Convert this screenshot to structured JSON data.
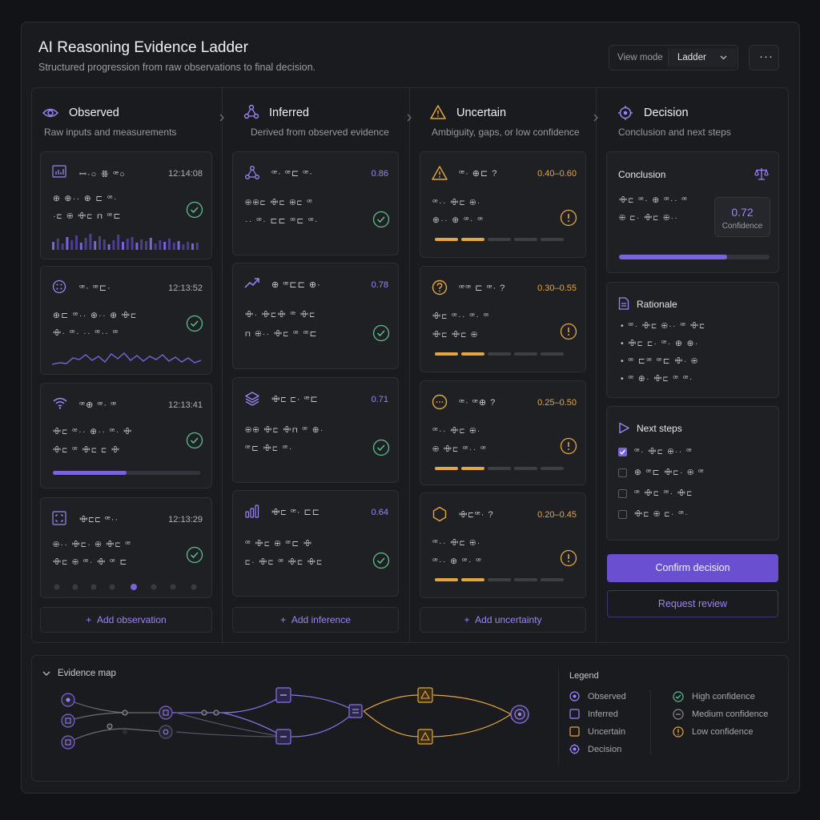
{
  "header": {
    "title": "AI Reasoning Evidence Ladder",
    "subtitle": "Structured progression from raw observations to final decision.",
    "view_label": "View mode",
    "view_value": "Ladder",
    "more": "···"
  },
  "columns": [
    {
      "title": "Observed",
      "subtitle": "Raw inputs and measurements",
      "add": "Add observation"
    },
    {
      "title": "Inferred",
      "subtitle": "Derived from observed evidence",
      "add": "Add inference"
    },
    {
      "title": "Uncertain",
      "subtitle": "Ambiguity, gaps, or low confidence",
      "add": "Add uncertainty"
    },
    {
      "title": "Decision",
      "subtitle": "Conclusion and next steps"
    }
  ],
  "observed": [
    {
      "title": "ꟷ·○ ꗥ ꟹ○",
      "time": "12:14:08",
      "lines": [
        "⊕ ⊕·· ⊕ ⊏ ꟹ·",
        "·⊏ ⊕ ꗳ⊏ ⊓ ꟹ⊏"
      ]
    },
    {
      "title": "ꟹ· ꟹ⊏·",
      "time": "12:13:52",
      "lines": [
        "⊕⊏ ꟹ·· ⊕·· ⊕ ꗳ⊏",
        "ꗳ· ꟹ· ·· ꟹ·· ꟹ"
      ]
    },
    {
      "title": "ꟹ⊕ ꟹ· ꟹ",
      "time": "12:13:41",
      "lines": [
        "ꗳ⊏ ꟹ·· ⊕·· ꟹ· ꗳ",
        "ꗳ⊏ ꟹ ꗳ⊏ ⊏ ꗳ"
      ]
    },
    {
      "title": "ꗳ⊏⊏ ꟹ··",
      "time": "12:13:29",
      "lines": [
        "⊕·· ꗳ⊏· ⊕ ꗳ⊏ ꟹ",
        "ꗳ⊏ ⊕ ꟹ· ꗳ ꟹ ⊏"
      ]
    }
  ],
  "inferred": [
    {
      "title": "ꟹ· ꟹ⊏ ꟹ·",
      "score": "0.86",
      "lines": [
        "⊕⊕⊏ ꗳ⊏ ⊕⊏ ꟹ",
        "·· ꟹ· ⊏⊏ ꟹ⊏ ꟹ·"
      ]
    },
    {
      "title": "⊕ ꟹ⊏⊏ ⊕·",
      "score": "0.78",
      "lines": [
        "ꗳ· ꗳ⊏ꗳ ꟹ ꗳ⊏",
        "⊓ ⊕·· ꗳ⊏ ꟹ ꟹ⊏"
      ]
    },
    {
      "title": "ꗳ⊏ ⊏· ꟹ⊏",
      "score": "0.71",
      "lines": [
        "⊕⊕ ꗳ⊏ ꗳ⊓ ꟹ ⊕·",
        "ꟹ⊏ ꗳ⊏ ꟹ·"
      ]
    },
    {
      "title": "ꗳ⊏ ꟹ· ⊏⊏",
      "score": "0.64",
      "lines": [
        "ꟹ ꗳ⊏ ⊕ ꟹ⊏ ꗳ",
        "⊏· ꗳ⊏ ꟹ ꗳ⊏ ꗳ⊏"
      ]
    }
  ],
  "uncertain": [
    {
      "title": "ꟹ· ⊕⊏ ?",
      "range": "0.40–0.60",
      "lines": [
        "ꟹ·· ꗳ⊏ ⊕·",
        "⊕·· ⊕ ꟹ· ꟹ"
      ]
    },
    {
      "title": "ꟹꟹ ⊏ ꟹ· ?",
      "range": "0.30–0.55",
      "lines": [
        "ꗳ⊏ ꟹ·· ꟹ· ꟹ",
        "ꗳ⊏ ꗳ⊏ ⊕"
      ]
    },
    {
      "title": "ꟹ· ꟹ⊕ ?",
      "range": "0.25–0.50",
      "lines": [
        "ꟹ·· ꗳ⊏ ⊕·",
        "⊕ ꗳ⊏ ꟹ·· ꟹ"
      ]
    },
    {
      "title": "ꗳ⊏ꟹ· ?",
      "range": "0.20–0.45",
      "lines": [
        "ꟹ·· ꗳ⊏ ⊕·",
        "ꟹ·· ⊕ ꟹ· ꟹ"
      ]
    }
  ],
  "decision": {
    "conclusion_title": "Conclusion",
    "conclusion_lines": [
      "ꗳ⊏ ꟹ· ⊕ ꟹ·· ꟹ",
      "⊕ ⊏· ꗳ⊏ ⊕··"
    ],
    "confidence_value": "0.72",
    "confidence_label": "Confidence",
    "confidence_fraction": 0.72,
    "rationale_title": "Rationale",
    "rationale_items": [
      "ꟹ· ꗳ⊏ ⊕·· ꟹ ꗳ⊏",
      "ꗳ⊏ ⊏· ꟹ· ⊕ ⊕·",
      "ꟹ ⊏ꟹ ꟹ⊏ ꗳ· ⊕",
      "ꟹ ⊕· ꗳ⊏ ꟹ ꟹ·"
    ],
    "next_title": "Next steps",
    "next_items": [
      {
        "text": "ꟹ· ꗳ⊏ ⊕·· ꟹ",
        "checked": true
      },
      {
        "text": "⊕ ꟹ⊏ ꗳ⊏· ⊕ ꟹ",
        "checked": false
      },
      {
        "text": "ꟹ ꗳ⊏ ꟹ· ꗳ⊏",
        "checked": false
      },
      {
        "text": "ꗳ⊏ ⊕ ⊏· ꟹ·",
        "checked": false
      }
    ],
    "confirm": "Confirm decision",
    "review": "Request review"
  },
  "observed_progress": 0.5,
  "uncertain_level": 2,
  "map": {
    "title": "Evidence map",
    "legend_title": "Legend",
    "legend": [
      "Observed",
      "Inferred",
      "Uncertain",
      "Decision"
    ],
    "confidence": [
      "High confidence",
      "Medium confidence",
      "Low confidence"
    ]
  },
  "colors": {
    "accent": "#7b63db",
    "amber": "#e4a63e",
    "green": "#5ebd8a"
  }
}
